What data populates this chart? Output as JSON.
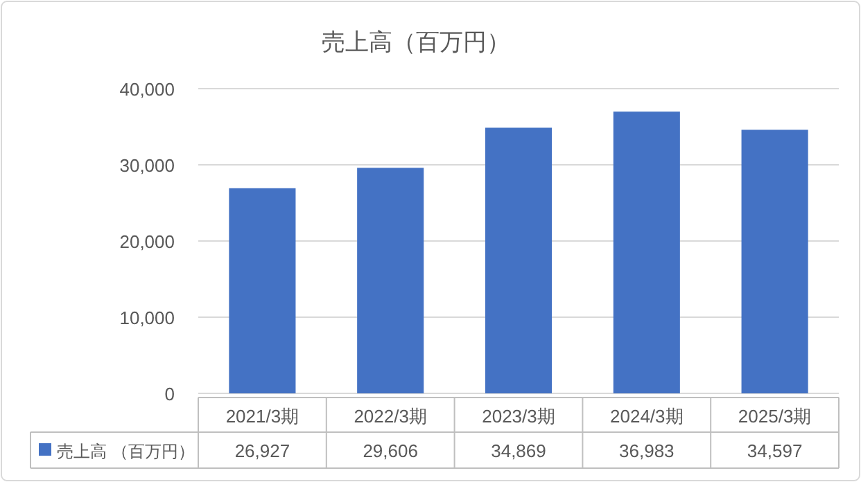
{
  "chart_data": {
    "type": "bar",
    "title": "売上高（百万円）",
    "categories": [
      "2021/3期",
      "2022/3期",
      "2023/3期",
      "2024/3期",
      "2025/3期"
    ],
    "series": [
      {
        "name": "売上高 （百万円）",
        "color": "#4472c4",
        "values": [
          26927,
          29606,
          34869,
          36983,
          34597
        ],
        "value_labels": [
          "26,927",
          "29,606",
          "34,869",
          "36,983",
          "34,597"
        ]
      }
    ],
    "ylim": [
      0,
      40000
    ],
    "yticks": [
      {
        "value": 0,
        "label": "0"
      },
      {
        "value": 10000,
        "label": "10,000"
      },
      {
        "value": 20000,
        "label": "20,000"
      },
      {
        "value": 30000,
        "label": "30,000"
      },
      {
        "value": 40000,
        "label": "40,000"
      }
    ],
    "grid": "y",
    "legend": "bottom"
  }
}
